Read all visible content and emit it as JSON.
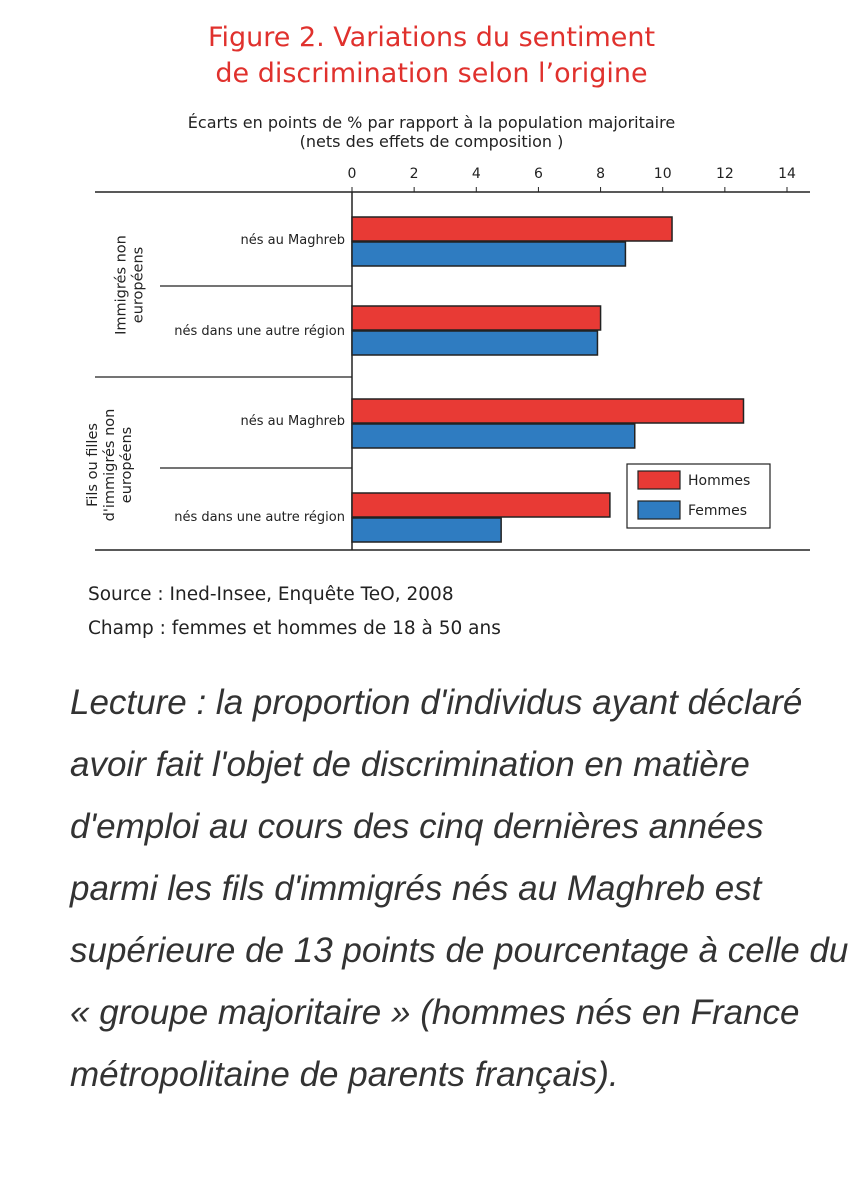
{
  "figure": {
    "title_line1": "Figure 2. Variations du sentiment",
    "title_line2": "de discrimination selon l’origine",
    "subtitle_line1": "Écarts en points de % par rapport à la population majoritaire",
    "subtitle_line2": "(nets des effets de composition )"
  },
  "chart_data": {
    "type": "bar",
    "orientation": "horizontal",
    "xlim": [
      0,
      14
    ],
    "ticks": [
      0,
      2,
      4,
      6,
      8,
      10,
      12,
      14
    ],
    "groups": [
      {
        "label": "Immigrés non européens",
        "categories": [
          "nés au Maghreb",
          "nés dans une autre région"
        ]
      },
      {
        "label": "Fils ou filles d'immigrés non européens",
        "categories": [
          "nés au Maghreb",
          "nés dans une autre région"
        ]
      }
    ],
    "series": [
      {
        "name": "Hommes",
        "color": "#e83a35",
        "values": [
          10.3,
          8.0,
          12.6,
          8.3
        ]
      },
      {
        "name": "Femmes",
        "color": "#2f7cc1",
        "values": [
          8.8,
          7.9,
          9.1,
          4.8
        ]
      }
    ],
    "legend_position": "bottom-right",
    "grid": false
  },
  "notes": {
    "source": "Source : Ined-Insee, Enquête TeO, 2008",
    "champ": "Champ : femmes et hommes de 18 à 50 ans"
  },
  "lecture": "Lecture : la proportion d'individus ayant déclaré avoir fait l'objet de discrimination en matière d'emploi au cours des cinq dernières années parmi les fils d'immigrés nés au Maghreb est supérieure de 13 points de pourcentage à celle du « groupe majoritaire » (hommes nés en France métropolitaine de parents français)."
}
